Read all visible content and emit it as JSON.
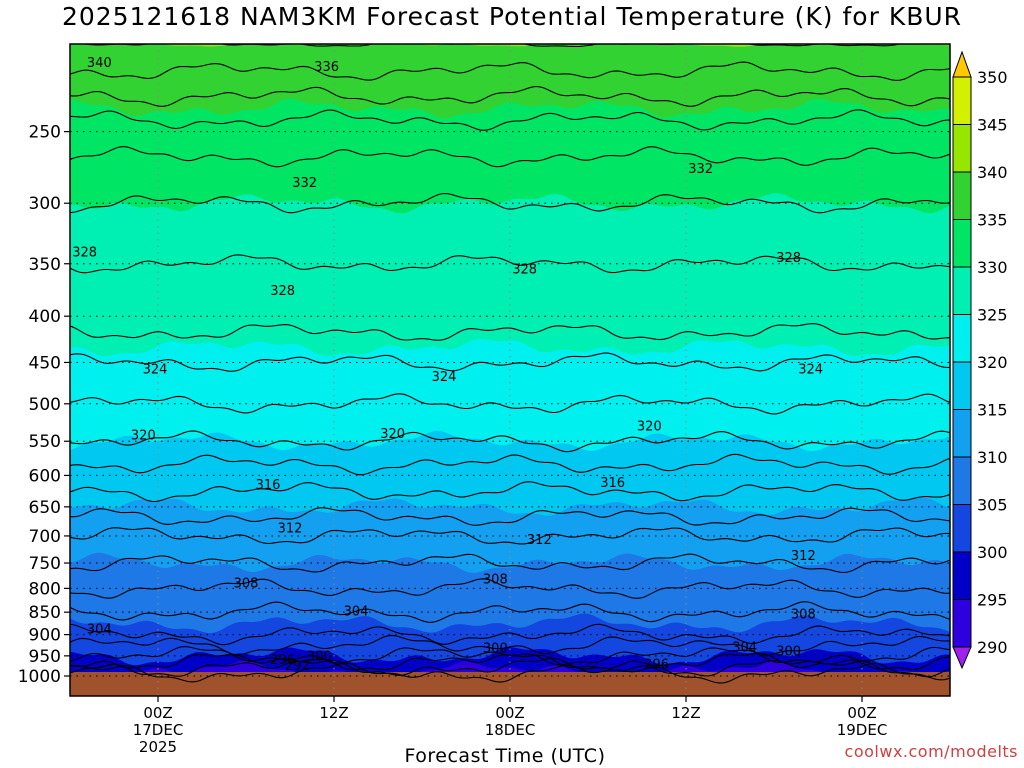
{
  "chart_data": {
    "type": "heatmap",
    "title": "2025121618 NAM3KM Forecast Potential Temperature (K) for KBUR",
    "xlabel": "Forecast Time (UTC)",
    "ylabel": "",
    "credit": "coolwx.com/modelts",
    "y_axis": {
      "scale": "pressure",
      "range": [
        1000,
        200
      ],
      "ticks": [
        250,
        300,
        350,
        400,
        450,
        500,
        550,
        600,
        650,
        700,
        750,
        800,
        850,
        900,
        950,
        1000
      ]
    },
    "x_axis": {
      "range_hours": [
        -6,
        54
      ],
      "ticks": [
        {
          "hour": 0,
          "lines": [
            "00Z",
            "17DEC",
            "2025"
          ]
        },
        {
          "hour": 12,
          "lines": [
            "12Z"
          ]
        },
        {
          "hour": 24,
          "lines": [
            "00Z",
            "18DEC"
          ]
        },
        {
          "hour": 36,
          "lines": [
            "12Z"
          ]
        },
        {
          "hour": 48,
          "lines": [
            "00Z",
            "19DEC"
          ]
        }
      ]
    },
    "colorbar": {
      "labels": [
        290,
        295,
        300,
        305,
        310,
        315,
        320,
        325,
        330,
        335,
        340,
        345,
        350
      ],
      "colors": [
        "#a020f0",
        "#2e00e0",
        "#0000c8",
        "#1446e0",
        "#1e78e6",
        "#14a0f0",
        "#00c8f0",
        "#00f0f0",
        "#00f0b4",
        "#00e664",
        "#32d232",
        "#96e600",
        "#d2f000",
        "#ffff00",
        "#ffc800"
      ]
    },
    "levels": [
      1000,
      950,
      900,
      850,
      800,
      750,
      700,
      650,
      600,
      550,
      500,
      450,
      400,
      350,
      300,
      250,
      200
    ],
    "theta_profile": [
      293,
      300,
      304,
      306,
      308,
      310,
      312,
      315,
      317,
      320,
      322,
      324,
      327,
      328,
      330,
      333,
      340
    ],
    "contour_labels": [
      {
        "text": "340",
        "hour": -4.0,
        "p": 210
      },
      {
        "text": "336",
        "hour": 11.5,
        "p": 212
      },
      {
        "text": "332",
        "hour": 10.0,
        "p": 285
      },
      {
        "text": "332",
        "hour": 37.0,
        "p": 275
      },
      {
        "text": "328",
        "hour": -5.0,
        "p": 340
      },
      {
        "text": "328",
        "hour": 8.5,
        "p": 375
      },
      {
        "text": "328",
        "hour": 25.0,
        "p": 355
      },
      {
        "text": "328",
        "hour": 43.0,
        "p": 345
      },
      {
        "text": "324",
        "hour": -0.2,
        "p": 458
      },
      {
        "text": "324",
        "hour": 19.5,
        "p": 467
      },
      {
        "text": "324",
        "hour": 44.5,
        "p": 458
      },
      {
        "text": "320",
        "hour": -1.0,
        "p": 542
      },
      {
        "text": "320",
        "hour": 16.0,
        "p": 540
      },
      {
        "text": "320",
        "hour": 33.5,
        "p": 530
      },
      {
        "text": "316",
        "hour": 7.5,
        "p": 615
      },
      {
        "text": "316",
        "hour": 31.0,
        "p": 612
      },
      {
        "text": "312",
        "hour": 9.0,
        "p": 687
      },
      {
        "text": "312",
        "hour": 26.0,
        "p": 707
      },
      {
        "text": "312",
        "hour": 44.0,
        "p": 737
      },
      {
        "text": "308",
        "hour": 6.0,
        "p": 790
      },
      {
        "text": "308",
        "hour": 23.0,
        "p": 782
      },
      {
        "text": "308",
        "hour": 44.0,
        "p": 855
      },
      {
        "text": "304",
        "hour": -4.0,
        "p": 888
      },
      {
        "text": "304",
        "hour": 13.5,
        "p": 849
      },
      {
        "text": "304",
        "hour": 40.0,
        "p": 930
      },
      {
        "text": "300",
        "hour": 11.0,
        "p": 951
      },
      {
        "text": "300",
        "hour": 23.0,
        "p": 932
      },
      {
        "text": "300",
        "hour": 43.0,
        "p": 940
      },
      {
        "text": "296",
        "hour": 8.5,
        "p": 960
      },
      {
        "text": "296",
        "hour": 34.0,
        "p": 971
      },
      {
        "text": "292",
        "hour": 9.5,
        "p": 975
      }
    ]
  }
}
